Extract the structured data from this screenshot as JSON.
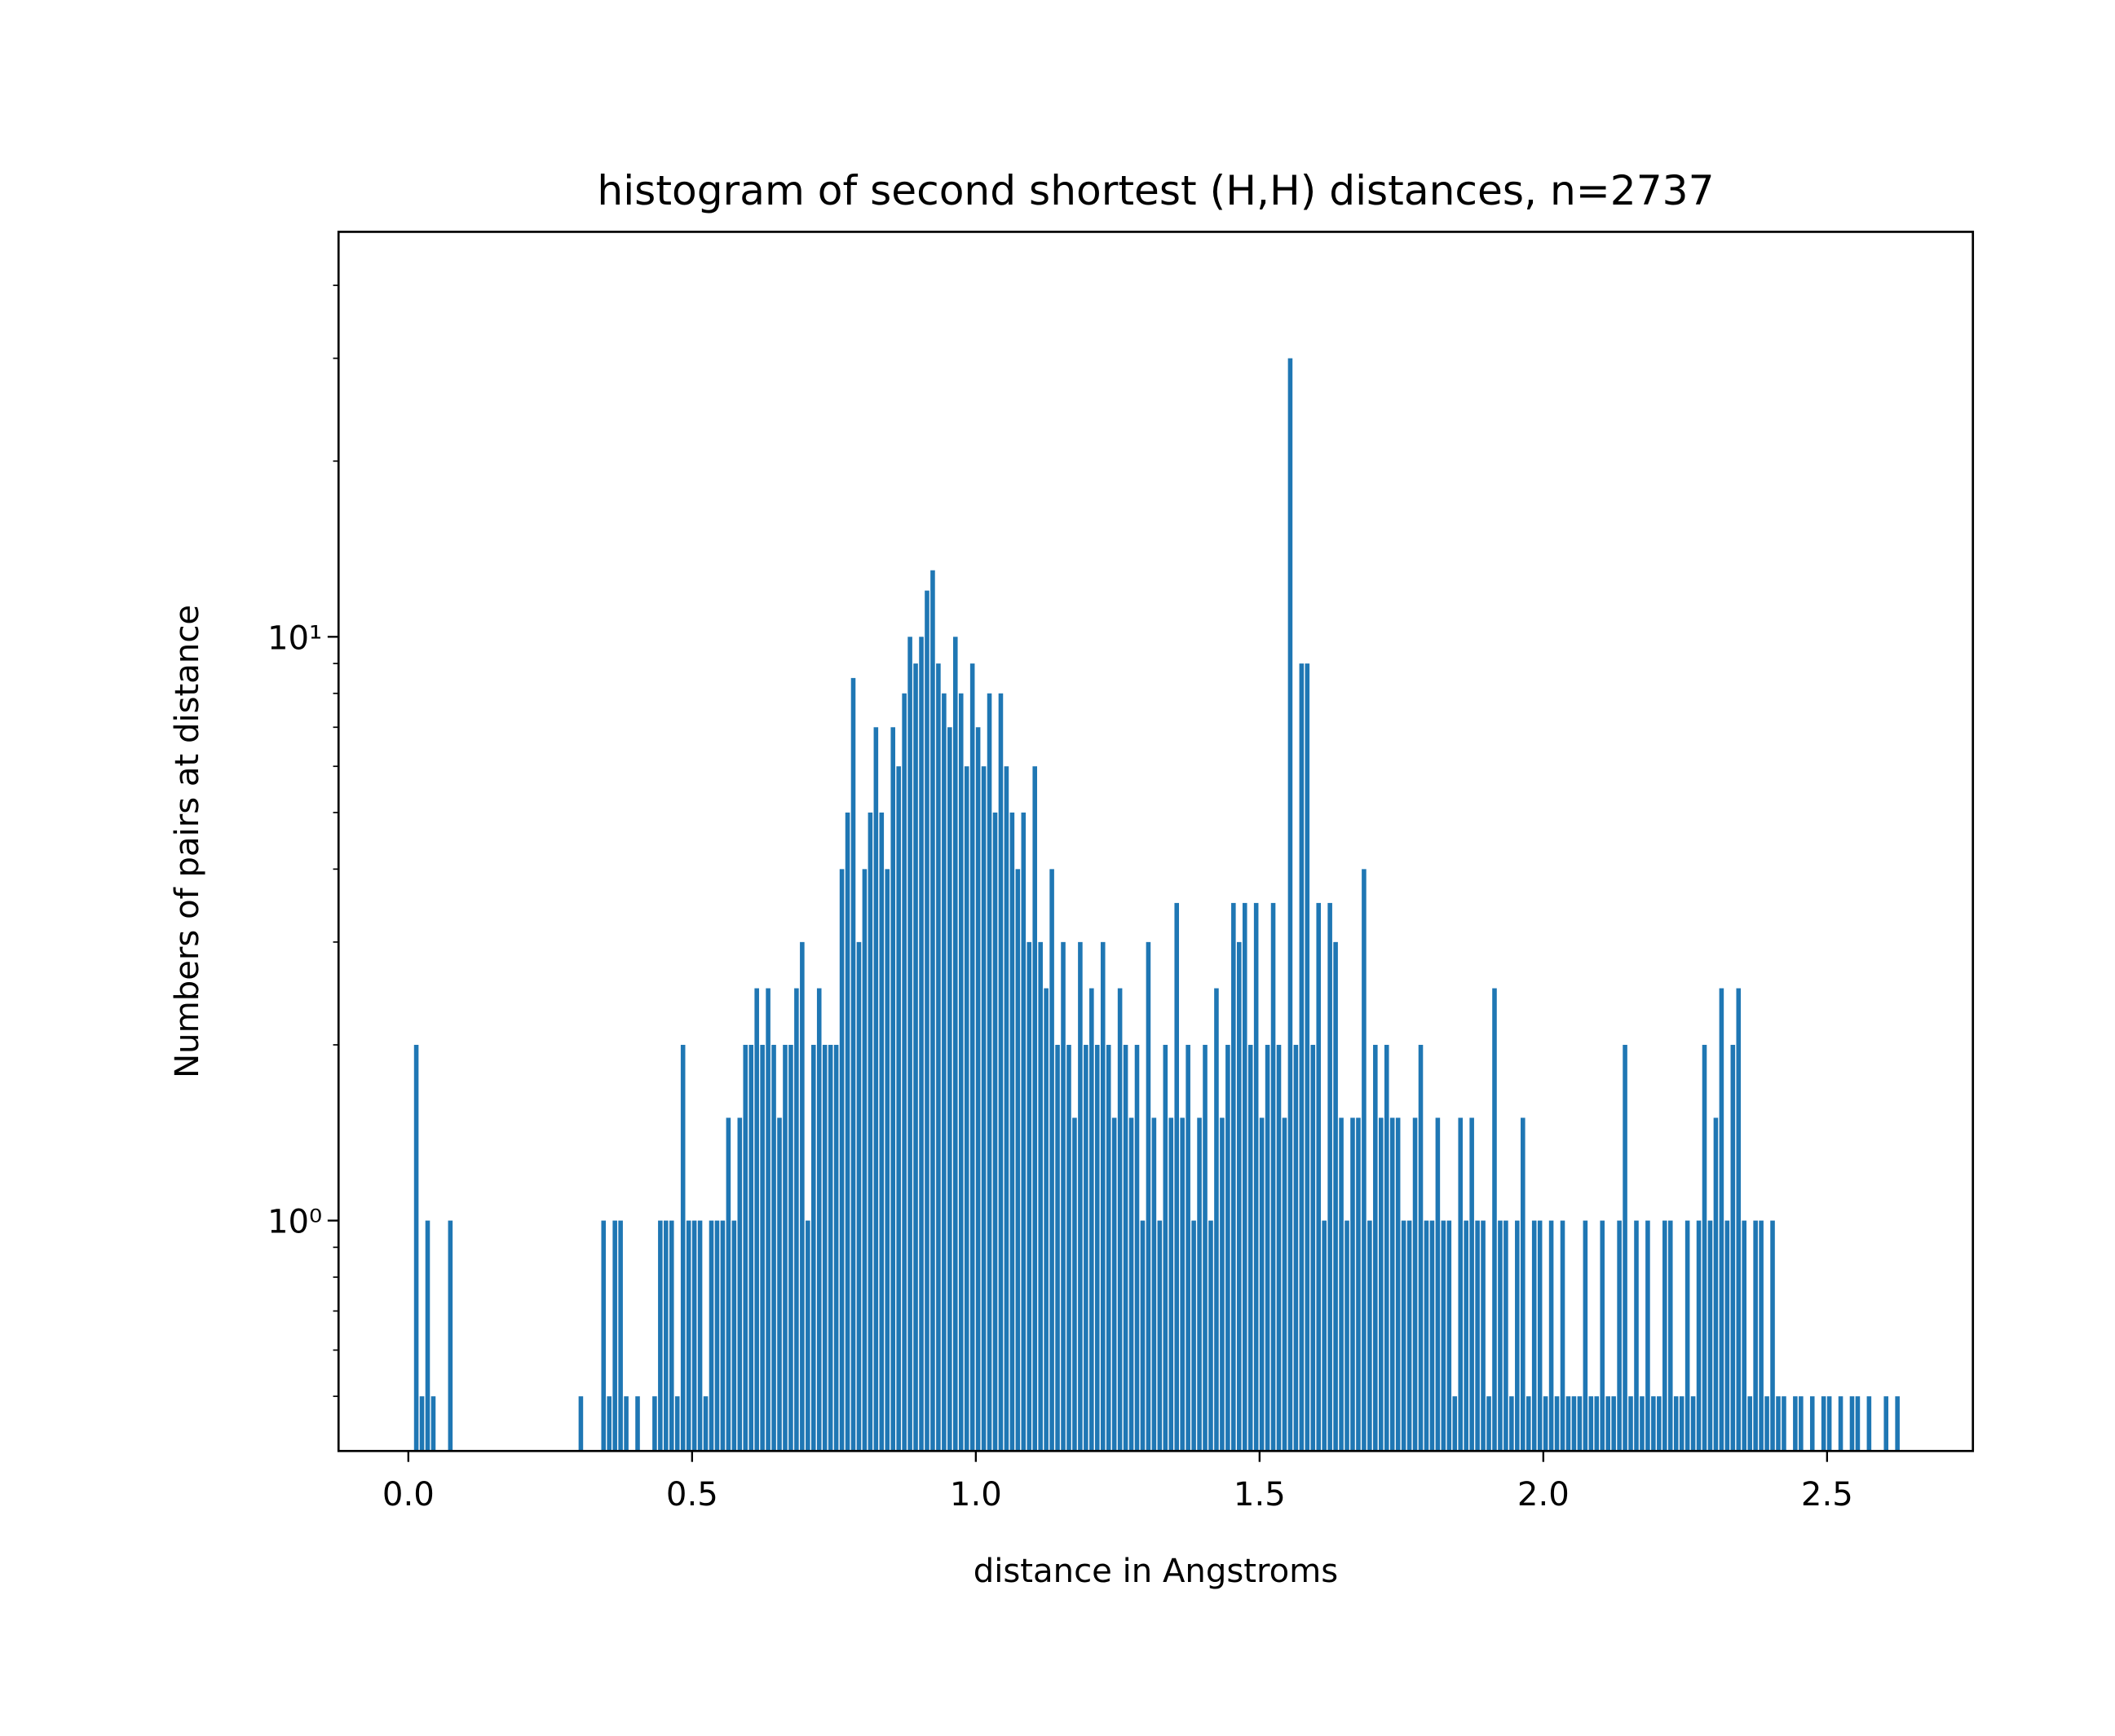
{
  "chart_data": {
    "type": "histogram",
    "title": "histogram of second shortest (H,H) distances, n=2737",
    "xlabel": "distance in Angstroms",
    "ylabel": "Numbers of pairs at distance",
    "color": "#1f77b4",
    "yscale": "log",
    "xlim": [
      -0.123,
      2.757
    ],
    "ylim": [
      0.403,
      49.4
    ],
    "xticks": [
      {
        "value": 0,
        "label": "0.0"
      },
      0.5,
      {
        "value": 1,
        "label": "1.0"
      },
      1.5,
      {
        "value": 2,
        "label": "2.0"
      },
      2.5
    ],
    "yticks": [
      {
        "value": 1,
        "label": "10⁰"
      },
      {
        "value": 10,
        "label": "10¹"
      }
    ],
    "yticks_minor": [
      0.5,
      0.6,
      0.7,
      0.8,
      0.9,
      2,
      3,
      4,
      5,
      6,
      7,
      8,
      9,
      20,
      30,
      40
    ],
    "bins": [
      0,
      0.01,
      0.02,
      0.03,
      0.04,
      0.05,
      0.06,
      0.07,
      0.08,
      0.09,
      0.1,
      0.11,
      0.12,
      0.13,
      0.14,
      0.15,
      0.16,
      0.17,
      0.18,
      0.19,
      0.2,
      0.21,
      0.22,
      0.23,
      0.24,
      0.25,
      0.26,
      0.27,
      0.28,
      0.29,
      0.3,
      0.31,
      0.32,
      0.33,
      0.34,
      0.35,
      0.36,
      0.37,
      0.38,
      0.39,
      0.4,
      0.41,
      0.42,
      0.43,
      0.44,
      0.45,
      0.46,
      0.47,
      0.48,
      0.49,
      0.5,
      0.51,
      0.52,
      0.53,
      0.54,
      0.55,
      0.56,
      0.57,
      0.58,
      0.59,
      0.6,
      0.61,
      0.62,
      0.63,
      0.64,
      0.65,
      0.66,
      0.67,
      0.68,
      0.69,
      0.7,
      0.71,
      0.72,
      0.73,
      0.74,
      0.75,
      0.76,
      0.77,
      0.78,
      0.79,
      0.8,
      0.81,
      0.82,
      0.83,
      0.84,
      0.85,
      0.86,
      0.87,
      0.88,
      0.89,
      0.9,
      0.91,
      0.92,
      0.93,
      0.94,
      0.95,
      0.96,
      0.97,
      0.98,
      0.99,
      1,
      1.01,
      1.02,
      1.03,
      1.04,
      1.05,
      1.06,
      1.07,
      1.08,
      1.09,
      1.1,
      1.11,
      1.12,
      1.13,
      1.14,
      1.15,
      1.16,
      1.17,
      1.18,
      1.19,
      1.2,
      1.21,
      1.22,
      1.23,
      1.24,
      1.25,
      1.26,
      1.27,
      1.28,
      1.29,
      1.3,
      1.31,
      1.32,
      1.33,
      1.34,
      1.35,
      1.36,
      1.37,
      1.38,
      1.39,
      1.4,
      1.41,
      1.42,
      1.43,
      1.44,
      1.45,
      1.46,
      1.47,
      1.48,
      1.49,
      1.5,
      1.51,
      1.52,
      1.53,
      1.54,
      1.55,
      1.56,
      1.57,
      1.58,
      1.59,
      1.6,
      1.61,
      1.62,
      1.63,
      1.64,
      1.65,
      1.66,
      1.67,
      1.68,
      1.69,
      1.7,
      1.71,
      1.72,
      1.73,
      1.74,
      1.75,
      1.76,
      1.77,
      1.78,
      1.79,
      1.8,
      1.81,
      1.82,
      1.83,
      1.84,
      1.85,
      1.86,
      1.87,
      1.88,
      1.89,
      1.9,
      1.91,
      1.92,
      1.93,
      1.94,
      1.95,
      1.96,
      1.97,
      1.98,
      1.99,
      2,
      2.01,
      2.02,
      2.03,
      2.04,
      2.05,
      2.06,
      2.07,
      2.08,
      2.09,
      2.1,
      2.11,
      2.12,
      2.13,
      2.14,
      2.15,
      2.16,
      2.17,
      2.18,
      2.19,
      2.2,
      2.21,
      2.22,
      2.23,
      2.24,
      2.25,
      2.26,
      2.27,
      2.28,
      2.29,
      2.3,
      2.31,
      2.32,
      2.33,
      2.34,
      2.35,
      2.36,
      2.37,
      2.38,
      2.39,
      2.4,
      2.41,
      2.42,
      2.43,
      2.44,
      2.45,
      2.46,
      2.47,
      2.48,
      2.49,
      2.5,
      2.51,
      2.52,
      2.53,
      2.54,
      2.55,
      2.56,
      2.57,
      2.58,
      2.59,
      2.6,
      2.61,
      2.62,
      2.63,
      2.64
    ],
    "values": [
      0,
      2,
      0.5,
      1,
      0.5,
      0,
      0,
      1,
      0,
      0,
      0,
      0,
      0,
      0,
      0,
      0,
      0,
      0,
      0,
      0,
      0,
      0,
      0,
      0,
      0,
      0,
      0,
      0,
      0,
      0,
      0.5,
      0,
      0,
      0,
      1,
      0.5,
      1,
      1,
      0.5,
      0,
      0.5,
      0,
      0,
      0.5,
      1,
      1,
      1,
      0.5,
      2,
      1,
      1,
      1,
      0.5,
      1,
      1,
      1,
      1.5,
      1,
      1.5,
      2,
      2,
      2.5,
      2,
      2.5,
      2,
      1.5,
      2,
      2,
      2.5,
      3,
      1,
      2,
      2.5,
      2,
      2,
      2,
      4,
      5,
      8.5,
      3,
      4,
      5,
      7,
      5,
      4,
      7,
      6,
      8,
      10,
      9,
      10,
      12,
      13,
      9,
      8,
      7,
      10,
      8,
      6,
      9,
      7,
      6,
      8,
      5,
      8,
      6,
      5,
      4,
      5,
      3,
      6,
      3,
      2.5,
      4,
      2,
      3,
      2,
      1.5,
      3,
      2,
      2.5,
      2,
      3,
      2,
      1.5,
      2.5,
      2,
      1.5,
      2,
      1,
      3,
      1.5,
      1,
      2,
      1.5,
      3.5,
      1.5,
      2,
      1,
      1.5,
      2,
      1,
      2.5,
      1.5,
      2,
      3.5,
      3,
      3.5,
      2,
      3.5,
      1.5,
      2,
      3.5,
      2,
      1.5,
      30,
      2,
      9,
      9,
      2,
      3.5,
      1,
      3.5,
      3,
      1.5,
      1,
      1.5,
      1.5,
      4,
      1,
      2,
      1.5,
      2,
      1.5,
      1.5,
      1,
      1,
      1.5,
      2,
      1,
      1,
      1.5,
      1,
      1,
      0.5,
      1.5,
      1,
      1.5,
      1,
      1,
      0.5,
      2.5,
      1,
      1,
      0.5,
      1,
      1.5,
      0.5,
      1,
      1,
      0.5,
      1,
      0.5,
      1,
      0.5,
      0.5,
      0.5,
      1,
      0.5,
      0.5,
      1,
      0.5,
      0.5,
      1,
      2,
      0.5,
      1,
      0.5,
      1,
      0.5,
      0.5,
      1,
      1,
      0.5,
      0.5,
      1,
      0.5,
      1,
      2,
      1,
      1.5,
      2.5,
      1,
      2,
      2.5,
      1,
      0.5,
      1,
      1,
      0.5,
      1,
      0.5,
      0.5,
      0,
      0.5,
      0.5,
      0,
      0.5,
      0,
      0.5,
      0.5,
      0,
      0.5,
      0,
      0.5,
      0.5,
      0,
      0.5,
      0,
      0,
      0.5,
      0,
      0.5,
      0
    ]
  }
}
